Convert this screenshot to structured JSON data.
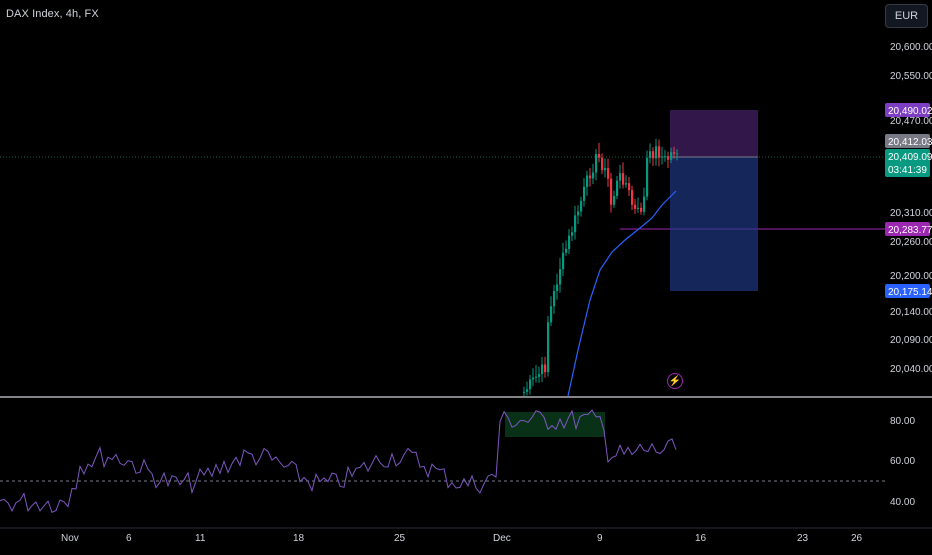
{
  "header": {
    "symbol": "DAX Index, 4h, FX",
    "currency": "EUR"
  },
  "price_axis": {
    "ticks": [
      "20,600.00",
      "20,550.00",
      "20,470.00",
      "20,310.00",
      "20,260.00",
      "20,200.00",
      "20,140.00",
      "20,090.00",
      "20,040.00"
    ],
    "labels": [
      {
        "text": "20,490.02",
        "color": "#7e3ec4"
      },
      {
        "text": "20,412.03",
        "color": "#787b86"
      },
      {
        "text": "20,409.09",
        "color": "#089981"
      },
      {
        "text": "03:41:39",
        "color": "#089981"
      },
      {
        "text": "20,283.77",
        "color": "#9c27b0"
      },
      {
        "text": "20,175.14",
        "color": "#2962ff"
      }
    ]
  },
  "rsi_axis": {
    "ticks": [
      "80.00",
      "60.00",
      "40.00"
    ]
  },
  "time_axis": {
    "ticks": [
      "Nov",
      "6",
      "11",
      "18",
      "25",
      "Dec",
      "9",
      "16",
      "23",
      "26"
    ]
  },
  "colors": {
    "up": "#089981",
    "down": "#f23645",
    "ma": "#2962ff",
    "rsi": "#7e57c2",
    "target_zone": "#5b2c86",
    "stop_zone": "#1e3a8a",
    "support_line": "#9c27b0"
  },
  "icons": {
    "alert": "lightning-alert-icon"
  }
}
